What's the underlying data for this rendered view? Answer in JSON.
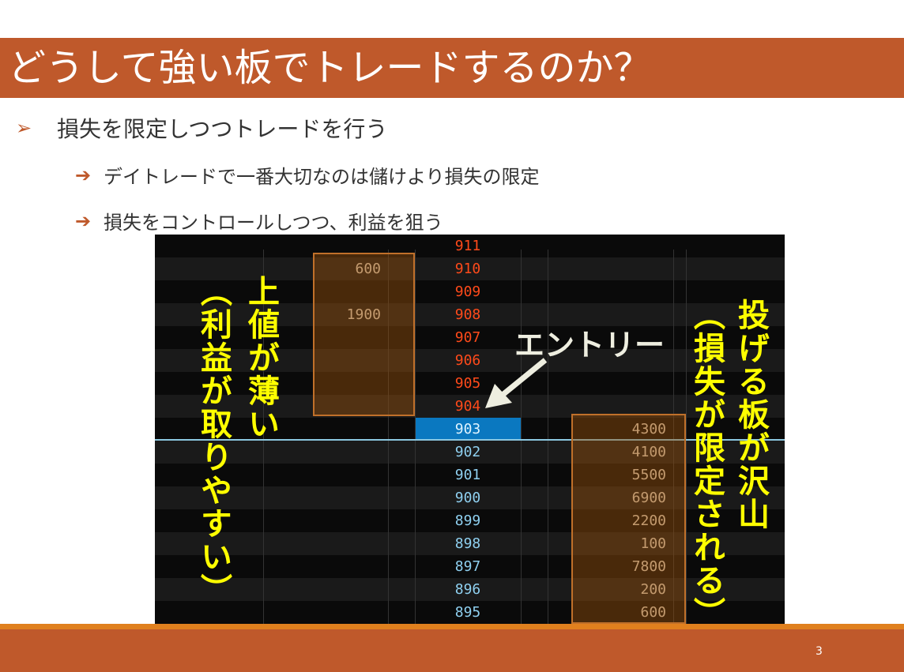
{
  "slide": {
    "title": "どうして強い板でトレードするのか？",
    "page_number": "3"
  },
  "bullets": {
    "main": {
      "icon": "arrowhead-bullet-icon",
      "text": "損失を限定しつつトレードを行う"
    },
    "subs": [
      {
        "icon": "arrow-right-icon",
        "text": "デイトレードで一番大切なのは儲けより損失の限定"
      },
      {
        "icon": "arrow-right-icon",
        "text": "損失をコントロールしつつ、利益を狙う"
      }
    ]
  },
  "board": {
    "rows": [
      {
        "price": "911",
        "ask": "",
        "bid": ""
      },
      {
        "price": "910",
        "ask": "600",
        "bid": ""
      },
      {
        "price": "909",
        "ask": "",
        "bid": ""
      },
      {
        "price": "908",
        "ask": "1900",
        "bid": ""
      },
      {
        "price": "907",
        "ask": "",
        "bid": ""
      },
      {
        "price": "906",
        "ask": "",
        "bid": ""
      },
      {
        "price": "905",
        "ask": "",
        "bid": ""
      },
      {
        "price": "904",
        "ask": "",
        "bid": ""
      },
      {
        "price": "903",
        "ask": "",
        "bid": "4300",
        "current": true
      },
      {
        "price": "902",
        "ask": "",
        "bid": "4100"
      },
      {
        "price": "901",
        "ask": "",
        "bid": "5500"
      },
      {
        "price": "900",
        "ask": "",
        "bid": "6900"
      },
      {
        "price": "899",
        "ask": "",
        "bid": "2200"
      },
      {
        "price": "898",
        "ask": "",
        "bid": "100"
      },
      {
        "price": "897",
        "ask": "",
        "bid": "7800"
      },
      {
        "price": "896",
        "ask": "",
        "bid": "200"
      },
      {
        "price": "895",
        "ask": "",
        "bid": "600"
      }
    ],
    "colors": {
      "ask_price": "#ff4a1a",
      "bid_price": "#8fd0f0",
      "current_bg": "#0a78c0",
      "qty": "#e8d8c0"
    }
  },
  "annotations": {
    "left_main": "上値が薄い",
    "left_sub": "（利益が取りやすい）",
    "right_main": "投げる板が沢山",
    "right_sub": "（損失が限定される）",
    "entry": "エントリー"
  },
  "colors": {
    "accent": "#bf592b",
    "highlight_text": "#ffff00"
  }
}
